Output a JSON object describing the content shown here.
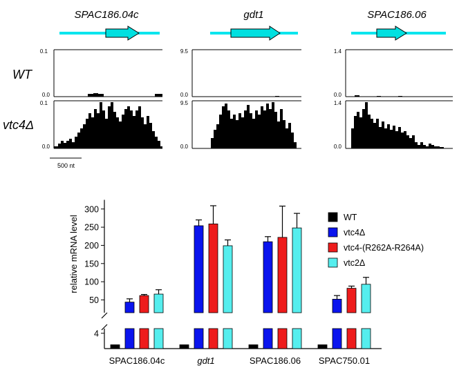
{
  "colors": {
    "gene_line": "#00e5ee",
    "gene_arrow": "#00e0e0",
    "track_fill": "#000000",
    "wt_bar": "#000000",
    "vtc4_bar": "#0a14ee",
    "mut_bar": "#ee1c1c",
    "vtc2_bar": "#55eeee"
  },
  "genes": [
    {
      "name": "SPAC186.04c"
    },
    {
      "name": "gdt1"
    },
    {
      "name": "SPAC186.06"
    }
  ],
  "rows": [
    {
      "label": "WT",
      "tracks": [
        {
          "max_label": "0.1",
          "min_label": "0.0"
        },
        {
          "max_label": "9.5",
          "min_label": "0.0"
        },
        {
          "max_label": "1.4",
          "min_label": "0.0"
        }
      ]
    },
    {
      "label": "vtc4Δ",
      "tracks": [
        {
          "max_label": "0.1",
          "min_label": "0.0"
        },
        {
          "max_label": "9.5",
          "min_label": "0.0"
        },
        {
          "max_label": "1.4",
          "min_label": "0.0"
        }
      ]
    }
  ],
  "scale_bar": {
    "label": "500 nt"
  },
  "chart_data": {
    "type": "bar",
    "ylabel": "relative mRNA level",
    "y_ticks_upper": [
      50,
      100,
      150,
      200,
      250,
      300
    ],
    "y_ticks_lower": [
      4
    ],
    "ylim_upper": [
      30,
      310
    ],
    "ylim_lower": [
      0,
      4.5
    ],
    "categories": [
      "SPAC186.04c",
      "gdt1",
      "SPAC186.06",
      "SPAC750.01"
    ],
    "category_italic": [
      false,
      true,
      false,
      false
    ],
    "legend_position": "right",
    "series": [
      {
        "name": "WT",
        "color": "#000000",
        "values": [
          1,
          1,
          1,
          1
        ],
        "errors": [
          0,
          0,
          0,
          0
        ]
      },
      {
        "name": "vtc4Δ",
        "color": "#0a14ee",
        "values": [
          44,
          254,
          210,
          52
        ],
        "errors": [
          9,
          16,
          14,
          10
        ]
      },
      {
        "name": "vtc4-(R262A-R264A)",
        "color": "#ee1c1c",
        "values": [
          62,
          259,
          222,
          82
        ],
        "errors": [
          3,
          50,
          86,
          6
        ]
      },
      {
        "name": "vtc2Δ",
        "color": "#55eeee",
        "values": [
          66,
          199,
          248,
          93
        ],
        "errors": [
          12,
          16,
          40,
          19
        ]
      }
    ]
  }
}
